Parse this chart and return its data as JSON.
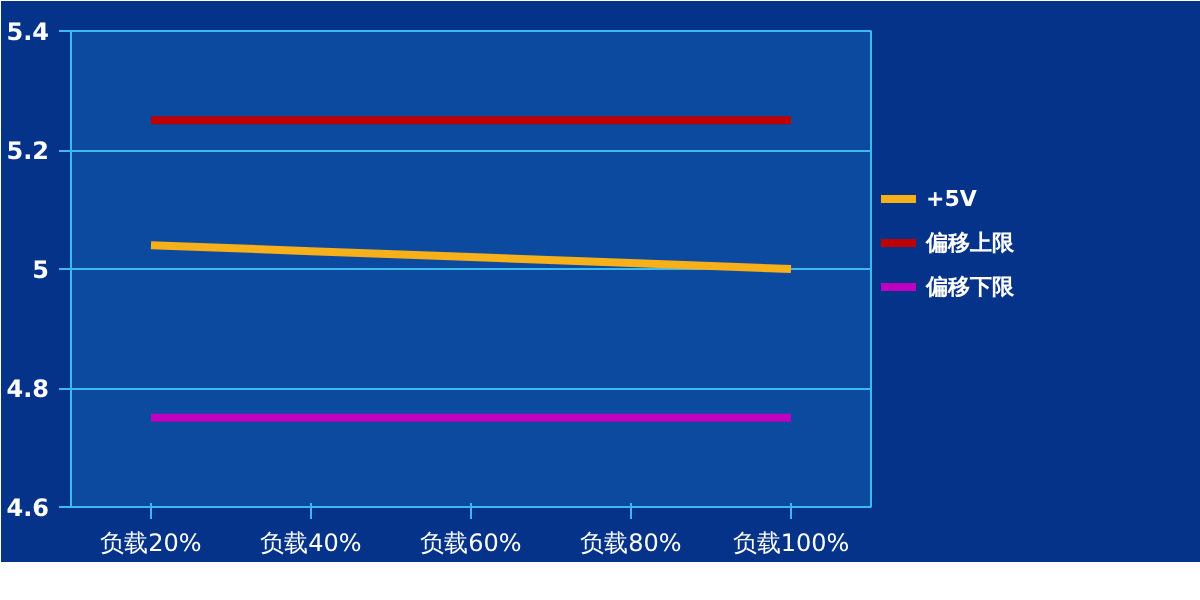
{
  "chart_data": {
    "type": "line",
    "categories": [
      "负载20%",
      "负载40%",
      "负载60%",
      "负载80%",
      "负载100%"
    ],
    "series": [
      {
        "name": "+5V",
        "color": "#f5b01a",
        "values": [
          5.04,
          5.03,
          5.02,
          5.01,
          5.0
        ]
      },
      {
        "name": "偏移上限",
        "color": "#c00000",
        "values": [
          5.25,
          5.25,
          5.25,
          5.25,
          5.25
        ]
      },
      {
        "name": "偏移下限",
        "color": "#c000c0",
        "values": [
          4.75,
          4.75,
          4.75,
          4.75,
          4.75
        ]
      }
    ],
    "ylim": [
      4.6,
      5.4
    ],
    "yticks": [
      4.6,
      4.8,
      5,
      5.2,
      5.4
    ],
    "grid": "y",
    "legend": "right",
    "marker": "none",
    "line_style": "solid"
  }
}
